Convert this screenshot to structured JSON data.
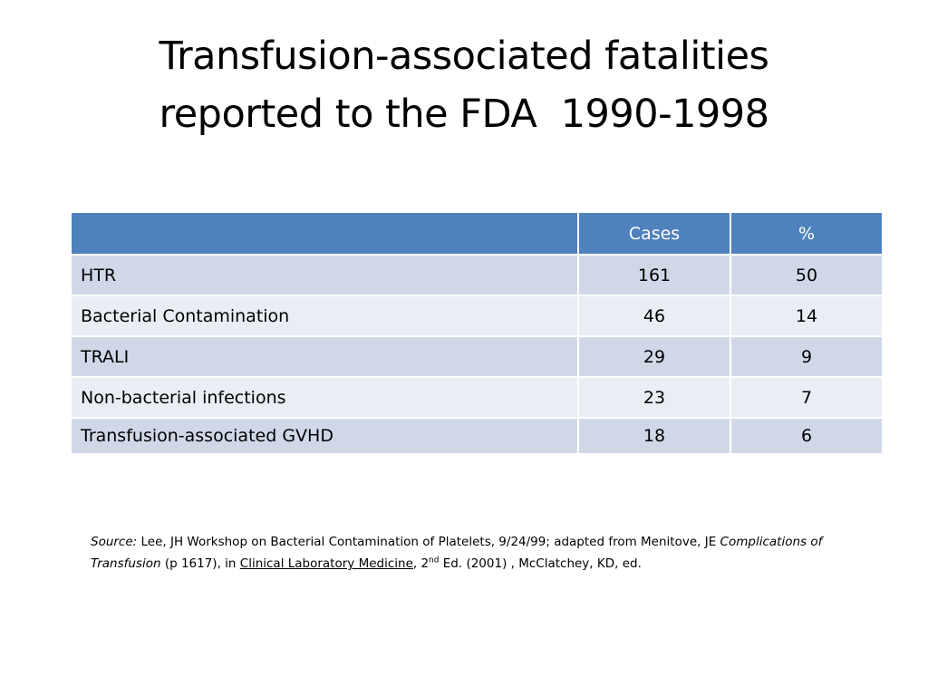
{
  "title": {
    "line1": "Transfusion-associated fatalities",
    "line2": "reported to the FDA  1990-1998"
  },
  "table": {
    "headers": [
      "",
      "Cases",
      "%"
    ],
    "rows": [
      {
        "label": "HTR",
        "cases": "161",
        "pct": "50"
      },
      {
        "label": "Bacterial Contamination",
        "cases": "46",
        "pct": "14"
      },
      {
        "label": "TRALI",
        "cases": "29",
        "pct": "9"
      },
      {
        "label": "Non-bacterial infections",
        "cases": "23",
        "pct": "7"
      },
      {
        "label": "Transfusion-associated GVHD",
        "cases": "18",
        "pct": "6"
      }
    ]
  },
  "source": {
    "label": "Source:",
    "text1": " Lee, JH Workshop on Bacterial Contamination of Platelets, 9/24/99; adapted from Menitove, JE ",
    "work_title": "Complications of Transfusion",
    "text2": " (p 1617), in ",
    "book_title": "Clinical Laboratory Medicine",
    "text3": ", 2",
    "edition_sup": "nd",
    "text4": " Ed. (2001) , McClatchey, KD, ed."
  },
  "colors": {
    "header_bg": "#4f81bd",
    "row_odd_bg": "#d0d8e8",
    "row_even_bg": "#e9edf4"
  }
}
